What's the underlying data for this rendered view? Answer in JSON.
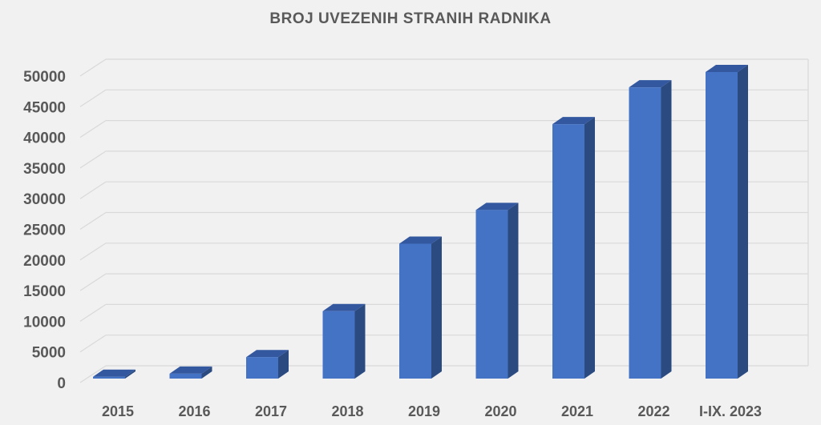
{
  "chart_data": {
    "type": "bar",
    "style": "3d-column",
    "title": "BROJ UVEZENIH STRANIH RADNIKA",
    "categories": [
      "2015",
      "2016",
      "2017",
      "2018",
      "2019",
      "2020",
      "2021",
      "2022",
      "I-IX. 2023"
    ],
    "values": [
      300,
      800,
      3500,
      11000,
      22000,
      27500,
      41500,
      47500,
      50000
    ],
    "xlabel": "",
    "ylabel": "",
    "ylim": [
      0,
      50000
    ],
    "ytick_step": 5000,
    "ytick_labels": [
      "0",
      "5000",
      "10000",
      "15000",
      "20000",
      "25000",
      "30000",
      "35000",
      "40000",
      "45000",
      "50000"
    ],
    "grid": true,
    "legend": false,
    "colors": {
      "bar_front": "#4472c4",
      "bar_side": "#2b4a80",
      "bar_top": "#33589f",
      "gridline": "#d9d9d9",
      "text": "#595959",
      "background": "#f1f1f2"
    }
  }
}
